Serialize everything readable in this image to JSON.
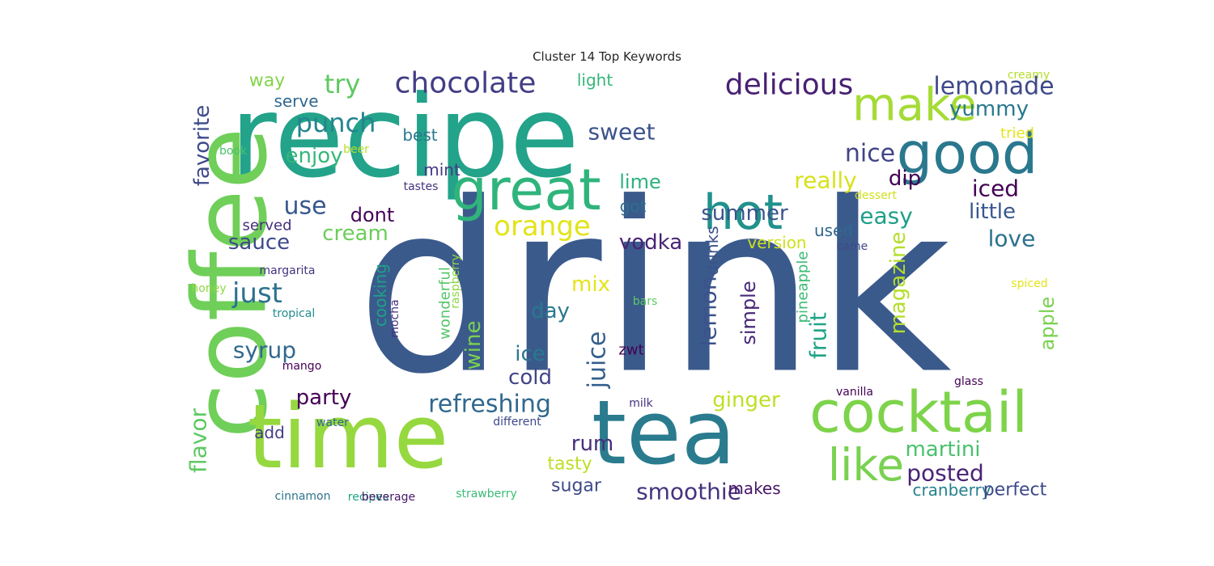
{
  "chart_data": {
    "type": "wordcloud",
    "title": "Cluster 14 Top Keywords",
    "palette": "viridis",
    "background": "#ffffff",
    "words": [
      {
        "text": "drink",
        "color": "#3b5a8c"
      },
      {
        "text": "recipe",
        "color": "#22a38a"
      },
      {
        "text": "coffee",
        "color": "#6fcf59"
      },
      {
        "text": "time",
        "color": "#96d83f"
      },
      {
        "text": "tea",
        "color": "#2a7b8e"
      },
      {
        "text": "great",
        "color": "#2fb47c"
      },
      {
        "text": "cocktail",
        "color": "#7dd34a"
      },
      {
        "text": "good",
        "color": "#2a788e"
      },
      {
        "text": "hot",
        "color": "#21918c"
      },
      {
        "text": "make",
        "color": "#a5db36"
      },
      {
        "text": "like",
        "color": "#7ad151"
      },
      {
        "text": "chocolate",
        "color": "#433e85"
      },
      {
        "text": "delicious",
        "color": "#482173"
      },
      {
        "text": "lemonade",
        "color": "#3e4989"
      },
      {
        "text": "punch",
        "color": "#25858e"
      },
      {
        "text": "yummy",
        "color": "#2a788e"
      },
      {
        "text": "try",
        "color": "#5ec962"
      },
      {
        "text": "favorite",
        "color": "#3e4a89"
      },
      {
        "text": "orange",
        "color": "#e2e418"
      },
      {
        "text": "sweet",
        "color": "#3b528b"
      },
      {
        "text": "nice",
        "color": "#414487"
      },
      {
        "text": "really",
        "color": "#d8e219"
      },
      {
        "text": "summer",
        "color": "#3b528b"
      },
      {
        "text": "easy",
        "color": "#1f9e89"
      },
      {
        "text": "iced",
        "color": "#440154"
      },
      {
        "text": "little",
        "color": "#38588c"
      },
      {
        "text": "love",
        "color": "#2c728e"
      },
      {
        "text": "enjoy",
        "color": "#35b779"
      },
      {
        "text": "refreshing",
        "color": "#31688e"
      },
      {
        "text": "juice",
        "color": "#355f8d"
      },
      {
        "text": "vodka",
        "color": "#482475"
      },
      {
        "text": "lemon",
        "color": "#3b528b"
      },
      {
        "text": "martini",
        "color": "#4ac16d"
      },
      {
        "text": "smoothie",
        "color": "#46337e"
      },
      {
        "text": "flavor",
        "color": "#5ec962"
      },
      {
        "text": "party",
        "color": "#440154"
      },
      {
        "text": "posted",
        "color": "#482475"
      },
      {
        "text": "just",
        "color": "#2c728e"
      },
      {
        "text": "syrup",
        "color": "#31688e"
      },
      {
        "text": "sauce",
        "color": "#3e4989"
      },
      {
        "text": "use",
        "color": "#38588c"
      },
      {
        "text": "dont",
        "color": "#450559"
      },
      {
        "text": "cream",
        "color": "#6ccd5a"
      },
      {
        "text": "wine",
        "color": "#7ad151"
      },
      {
        "text": "cold",
        "color": "#414487"
      },
      {
        "text": "ice",
        "color": "#2a788e"
      },
      {
        "text": "fruit",
        "color": "#20a486"
      },
      {
        "text": "magazine",
        "color": "#b5de2b"
      },
      {
        "text": "apple",
        "color": "#7ad151"
      },
      {
        "text": "ginger",
        "color": "#bddf26"
      },
      {
        "text": "rum",
        "color": "#472d7b"
      },
      {
        "text": "simple",
        "color": "#482878"
      },
      {
        "text": "day",
        "color": "#2a788e"
      },
      {
        "text": "mix",
        "color": "#e5e419"
      },
      {
        "text": "lime",
        "color": "#2db27d"
      },
      {
        "text": "dip",
        "color": "#440154"
      },
      {
        "text": "cranberry",
        "color": "#26818e"
      },
      {
        "text": "tasty",
        "color": "#bddf26"
      },
      {
        "text": "sugar",
        "color": "#3e4a89"
      },
      {
        "text": "makes",
        "color": "#481668"
      },
      {
        "text": "perfect",
        "color": "#3e4989"
      },
      {
        "text": "way",
        "color": "#84d44b"
      },
      {
        "text": "light",
        "color": "#35b779"
      },
      {
        "text": "serve",
        "color": "#31688e"
      },
      {
        "text": "best",
        "color": "#2a788e"
      },
      {
        "text": "mint",
        "color": "#443a83"
      },
      {
        "text": "got",
        "color": "#2e6e8e"
      },
      {
        "text": "drinks",
        "color": "#3b528b"
      },
      {
        "text": "used",
        "color": "#31688e"
      },
      {
        "text": "version",
        "color": "#d0e11c"
      },
      {
        "text": "served",
        "color": "#46307e"
      },
      {
        "text": "cooking",
        "color": "#1fa088"
      },
      {
        "text": "wonderful",
        "color": "#54c568"
      },
      {
        "text": "zwt",
        "color": "#440154"
      },
      {
        "text": "pineapple",
        "color": "#3bbb75"
      },
      {
        "text": "add",
        "color": "#433e85"
      },
      {
        "text": "tried",
        "color": "#e5e419"
      },
      {
        "text": "creamy",
        "color": "#b5de2b"
      },
      {
        "text": "book",
        "color": "#4ac16d"
      },
      {
        "text": "beer",
        "color": "#b5de2b"
      },
      {
        "text": "tastes",
        "color": "#46337e"
      },
      {
        "text": "dessert",
        "color": "#d0e11c"
      },
      {
        "text": "came",
        "color": "#3e4989"
      },
      {
        "text": "margarita",
        "color": "#463480"
      },
      {
        "text": "raspberry",
        "color": "#90d743"
      },
      {
        "text": "honey",
        "color": "#90d743"
      },
      {
        "text": "spiced",
        "color": "#e5e419"
      },
      {
        "text": "tropical",
        "color": "#218e8d"
      },
      {
        "text": "mocha",
        "color": "#46307e"
      },
      {
        "text": "bars",
        "color": "#5ec962"
      },
      {
        "text": "mango",
        "color": "#440154"
      },
      {
        "text": "glass",
        "color": "#440154"
      },
      {
        "text": "vanilla",
        "color": "#440154"
      },
      {
        "text": "milk",
        "color": "#46337e"
      },
      {
        "text": "water",
        "color": "#31688e"
      },
      {
        "text": "different",
        "color": "#3e4989"
      },
      {
        "text": "recipes",
        "color": "#20a486"
      },
      {
        "text": "beverage",
        "color": "#481668"
      },
      {
        "text": "strawberry",
        "color": "#3bbb75"
      },
      {
        "text": "cinnamon",
        "color": "#2c728e"
      }
    ]
  }
}
